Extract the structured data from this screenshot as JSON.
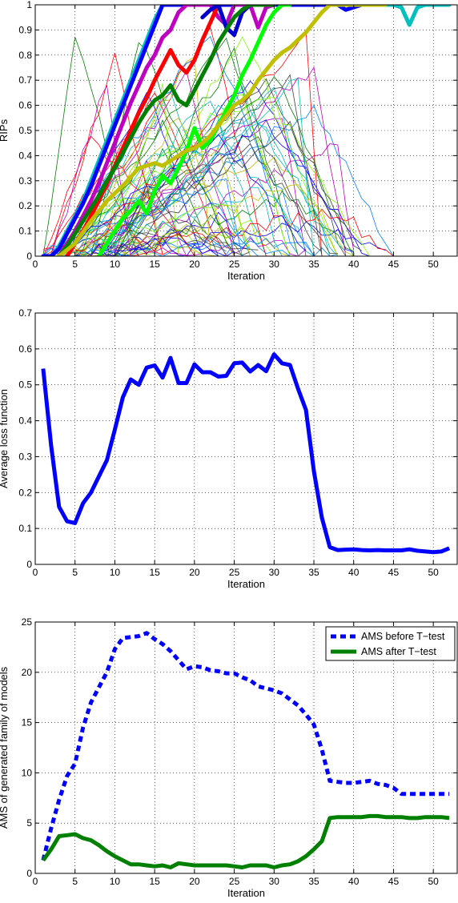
{
  "chart_data": [
    {
      "type": "line",
      "title": "",
      "xlabel": "Iteration",
      "ylabel": "RIPs",
      "xlim": [
        0,
        53
      ],
      "ylim": [
        0,
        1
      ],
      "xticks": [
        0,
        5,
        10,
        15,
        20,
        25,
        30,
        35,
        40,
        45,
        50
      ],
      "yticks": [
        0,
        0.1,
        0.2,
        0.3,
        0.4,
        0.5,
        0.6,
        0.7,
        0.8,
        0.9,
        1
      ],
      "grid": true,
      "highlighted_series": [
        {
          "color": "#00c0c0",
          "x": [
            1,
            2,
            3,
            4,
            5,
            6,
            7,
            8,
            9,
            10,
            11,
            12,
            13,
            14,
            15,
            16,
            17,
            18,
            19,
            20,
            25,
            30,
            35,
            40,
            44,
            45,
            46,
            47,
            48,
            49,
            50,
            51,
            52
          ],
          "y": [
            0,
            0,
            0.04,
            0.1,
            0.16,
            0.22,
            0.3,
            0.38,
            0.46,
            0.54,
            0.62,
            0.7,
            0.78,
            0.86,
            0.94,
            1,
            1,
            1,
            1,
            1,
            1,
            1,
            1,
            1,
            1,
            1,
            0.99,
            0.92,
            0.99,
            1,
            1,
            1,
            1
          ]
        },
        {
          "color": "#0000ff",
          "x": [
            1,
            2,
            3,
            4,
            5,
            6,
            7,
            8,
            9,
            10,
            11,
            12,
            13,
            14,
            15,
            16,
            17,
            20,
            30,
            38,
            39,
            40,
            41,
            42
          ],
          "y": [
            0,
            0,
            0.03,
            0.09,
            0.15,
            0.21,
            0.28,
            0.36,
            0.44,
            0.52,
            0.6,
            0.68,
            0.76,
            0.84,
            0.92,
            1,
            1,
            1,
            1,
            1,
            0.98,
            0.99,
            1,
            1
          ]
        },
        {
          "color": "#c000c0",
          "x": [
            3,
            4,
            5,
            6,
            7,
            8,
            9,
            10,
            11,
            12,
            13,
            14,
            15,
            16,
            17,
            18,
            19,
            20,
            21,
            22,
            23,
            24,
            25,
            26,
            27,
            28,
            29,
            30
          ],
          "y": [
            0,
            0.05,
            0.1,
            0.16,
            0.22,
            0.29,
            0.37,
            0.45,
            0.53,
            0.61,
            0.68,
            0.75,
            0.8,
            0.87,
            0.9,
            0.97,
            1,
            1,
            1,
            1,
            0.95,
            0.92,
            1,
            1,
            1,
            0.91,
            0.99,
            1
          ]
        },
        {
          "color": "#ff0000",
          "x": [
            4,
            5,
            6,
            7,
            8,
            9,
            10,
            11,
            12,
            13,
            14,
            15,
            16,
            17,
            18,
            19,
            20,
            21,
            22,
            23
          ],
          "y": [
            0,
            0.05,
            0.1,
            0.16,
            0.22,
            0.29,
            0.36,
            0.43,
            0.5,
            0.57,
            0.63,
            0.7,
            0.76,
            0.82,
            0.76,
            0.73,
            0.78,
            0.86,
            0.93,
            1
          ]
        },
        {
          "color": "#0000cc",
          "x": [
            21,
            22,
            23,
            24,
            25,
            26,
            27,
            28,
            29
          ],
          "y": [
            0.95,
            0.98,
            1,
            0.91,
            0.88,
            0.97,
            1,
            1,
            1
          ]
        },
        {
          "color": "#008000",
          "x": [
            3,
            4,
            5,
            6,
            7,
            8,
            9,
            10,
            11,
            12,
            13,
            14,
            15,
            16,
            17,
            18,
            19,
            20,
            21,
            22,
            23,
            24,
            25,
            26,
            27,
            28,
            29,
            30
          ],
          "y": [
            0,
            0.04,
            0.09,
            0.14,
            0.19,
            0.24,
            0.3,
            0.35,
            0.41,
            0.47,
            0.53,
            0.58,
            0.62,
            0.64,
            0.68,
            0.62,
            0.6,
            0.66,
            0.72,
            0.78,
            0.85,
            0.9,
            0.95,
            0.98,
            1,
            1,
            1,
            1
          ]
        },
        {
          "color": "#00ff00",
          "x": [
            8,
            9,
            10,
            11,
            12,
            13,
            14,
            15,
            16,
            17,
            18,
            19,
            20,
            21,
            22,
            23,
            24,
            25,
            26,
            27,
            28,
            29,
            30,
            31,
            32
          ],
          "y": [
            0,
            0.05,
            0.1,
            0.15,
            0.18,
            0.22,
            0.17,
            0.26,
            0.32,
            0.29,
            0.35,
            0.42,
            0.51,
            0.43,
            0.46,
            0.52,
            0.58,
            0.64,
            0.72,
            0.78,
            0.85,
            0.92,
            0.97,
            1,
            1
          ]
        },
        {
          "color": "#c0c000",
          "x": [
            3,
            5,
            7,
            9,
            11,
            13,
            15,
            16,
            17,
            18,
            19,
            20,
            21,
            22,
            23,
            24,
            25,
            26,
            27,
            28,
            29,
            30,
            31,
            32,
            33,
            34,
            35,
            36,
            37,
            38,
            39,
            40,
            42,
            44
          ],
          "y": [
            0,
            0.05,
            0.14,
            0.22,
            0.28,
            0.35,
            0.37,
            0.36,
            0.38,
            0.4,
            0.42,
            0.43,
            0.45,
            0.48,
            0.52,
            0.56,
            0.6,
            0.62,
            0.65,
            0.7,
            0.74,
            0.78,
            0.81,
            0.83,
            0.86,
            0.89,
            0.93,
            0.97,
            1,
            1,
            1,
            1,
            1,
            1
          ]
        }
      ],
      "background_series_note": ""
    },
    {
      "type": "line",
      "title": "",
      "xlabel": "Iteration",
      "ylabel": "Average loss function",
      "xlim": [
        0,
        53
      ],
      "ylim": [
        0,
        0.7
      ],
      "xticks": [
        0,
        5,
        10,
        15,
        20,
        25,
        30,
        35,
        40,
        45,
        50
      ],
      "yticks": [
        0,
        0.1,
        0.2,
        0.3,
        0.4,
        0.5,
        0.6,
        0.7
      ],
      "grid": true,
      "series": [
        {
          "color": "#0000ff",
          "x": [
            1,
            2,
            3,
            4,
            5,
            6,
            7,
            8,
            9,
            10,
            11,
            12,
            13,
            14,
            15,
            16,
            17,
            18,
            19,
            20,
            21,
            22,
            23,
            24,
            25,
            26,
            27,
            28,
            29,
            30,
            31,
            32,
            33,
            34,
            35,
            36,
            37,
            38,
            39,
            40,
            41,
            42,
            43,
            44,
            45,
            46,
            47,
            48,
            49,
            50,
            51,
            52
          ],
          "y": [
            0.545,
            0.33,
            0.16,
            0.12,
            0.115,
            0.17,
            0.2,
            0.245,
            0.29,
            0.375,
            0.465,
            0.515,
            0.5,
            0.548,
            0.554,
            0.52,
            0.575,
            0.505,
            0.505,
            0.557,
            0.535,
            0.535,
            0.523,
            0.525,
            0.56,
            0.562,
            0.537,
            0.555,
            0.538,
            0.585,
            0.56,
            0.555,
            0.49,
            0.43,
            0.26,
            0.13,
            0.048,
            0.04,
            0.041,
            0.042,
            0.04,
            0.039,
            0.04,
            0.039,
            0.039,
            0.039,
            0.042,
            0.038,
            0.036,
            0.034,
            0.036,
            0.045
          ]
        }
      ]
    },
    {
      "type": "line",
      "title": "",
      "xlabel": "Iteration",
      "ylabel": "AMS of generated family of models",
      "xlim": [
        0,
        53
      ],
      "ylim": [
        0,
        25
      ],
      "xticks": [
        0,
        5,
        10,
        15,
        20,
        25,
        30,
        35,
        40,
        45,
        50
      ],
      "yticks": [
        0,
        5,
        10,
        15,
        20,
        25
      ],
      "grid": true,
      "legend": "top-right",
      "series": [
        {
          "name": "AMS before T−test",
          "color": "#0000ff",
          "dash": true,
          "x": [
            1,
            2,
            3,
            4,
            5,
            6,
            7,
            8,
            9,
            10,
            11,
            12,
            13,
            14,
            15,
            16,
            17,
            18,
            19,
            20,
            21,
            22,
            23,
            24,
            25,
            26,
            27,
            28,
            29,
            30,
            31,
            32,
            33,
            34,
            35,
            36,
            37,
            38,
            39,
            40,
            41,
            42,
            43,
            44,
            45,
            46,
            47,
            48,
            49,
            50,
            51,
            52
          ],
          "y": [
            1.3,
            4.5,
            7.3,
            9.7,
            10.9,
            14.5,
            17.0,
            18.5,
            20.0,
            22.3,
            23.4,
            23.5,
            23.6,
            23.9,
            23.3,
            22.8,
            22.1,
            21.2,
            20.3,
            20.6,
            20.5,
            20.2,
            20.1,
            19.9,
            19.9,
            19.5,
            19.2,
            18.6,
            18.4,
            18.2,
            17.9,
            17.3,
            16.7,
            15.8,
            14.8,
            12.3,
            9.2,
            9.1,
            9.0,
            9.0,
            9.1,
            9.2,
            8.9,
            8.8,
            8.5,
            7.9,
            7.9,
            7.9,
            7.9,
            7.9,
            7.9,
            7.9
          ]
        },
        {
          "name": "AMS after T−test",
          "color": "#008000",
          "dash": false,
          "x": [
            1,
            2,
            3,
            4,
            5,
            6,
            7,
            8,
            9,
            10,
            11,
            12,
            13,
            14,
            15,
            16,
            17,
            18,
            19,
            20,
            21,
            22,
            23,
            24,
            25,
            26,
            27,
            28,
            29,
            30,
            31,
            32,
            33,
            34,
            35,
            36,
            37,
            38,
            39,
            40,
            41,
            42,
            43,
            44,
            45,
            46,
            47,
            48,
            49,
            50,
            51,
            52
          ],
          "y": [
            1.3,
            2.4,
            3.7,
            3.8,
            3.9,
            3.5,
            3.3,
            2.8,
            2.2,
            1.7,
            1.3,
            0.9,
            0.9,
            0.8,
            0.7,
            0.8,
            0.6,
            1.0,
            0.9,
            0.8,
            0.8,
            0.8,
            0.8,
            0.8,
            0.7,
            0.6,
            0.8,
            0.8,
            0.8,
            0.6,
            0.8,
            0.9,
            1.2,
            1.7,
            2.4,
            3.2,
            5.5,
            5.6,
            5.6,
            5.6,
            5.6,
            5.7,
            5.7,
            5.6,
            5.6,
            5.6,
            5.5,
            5.5,
            5.6,
            5.6,
            5.6,
            5.5
          ]
        }
      ]
    }
  ]
}
